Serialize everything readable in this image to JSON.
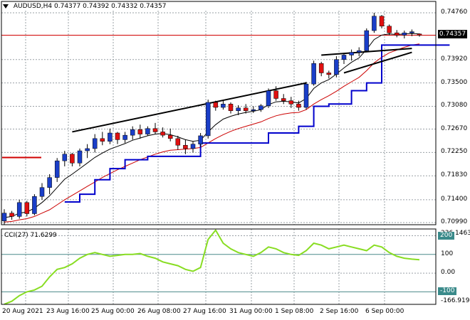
{
  "header": {
    "symbol": "AUDUSD,H4",
    "ohlc": "0.74377 0.74392 0.74332 0.74357"
  },
  "cci": {
    "title": "CCI(27) 71.6299",
    "max_label": "236.1463",
    "min_label": "-166.9194",
    "levels": [
      "200",
      "100",
      "0.00",
      "-100"
    ]
  },
  "price_axis": {
    "labels": [
      "0.74760",
      "0.74357",
      "0.73920",
      "0.73500",
      "0.73080",
      "0.72670",
      "0.72250",
      "0.71830",
      "0.71400",
      "0.70990"
    ],
    "current": "0.74357"
  },
  "time_axis": {
    "labels": [
      "20 Aug 2021",
      "23 Aug 16:00",
      "25 Aug 00:00",
      "26 Aug 08:00",
      "27 Aug 16:00",
      "31 Aug 00:00",
      "1 Sep 08:00",
      "2 Sep 16:00",
      "6 Sep 00:00"
    ]
  },
  "colors": {
    "bull": "#1a3ec8",
    "bear": "#e01010",
    "ma_fast": "#000000",
    "ma_slow": "#cc0000",
    "support": "#0000cc",
    "cci": "#88dd22",
    "grid": "#9aa0a6",
    "pane_border": "#000000",
    "current_line": "#d00000"
  },
  "chart_data": {
    "type": "candlestick",
    "series": [
      {
        "name": "",
        "ohlc": [
          [
            0.7102,
            0.7123,
            0.7095,
            0.7116
          ],
          [
            0.7116,
            0.712,
            0.7104,
            0.711
          ],
          [
            0.711,
            0.714,
            0.7106,
            0.7135
          ],
          [
            0.7135,
            0.7138,
            0.711,
            0.7115
          ],
          [
            0.7115,
            0.715,
            0.7112,
            0.7146
          ],
          [
            0.7146,
            0.717,
            0.714,
            0.7162
          ],
          [
            0.7162,
            0.7186,
            0.715,
            0.718
          ],
          [
            0.718,
            0.7215,
            0.7172,
            0.721
          ],
          [
            0.721,
            0.7228,
            0.72,
            0.7222
          ],
          [
            0.7222,
            0.7224,
            0.72,
            0.7206
          ],
          [
            0.7206,
            0.7232,
            0.72,
            0.7228
          ],
          [
            0.7228,
            0.724,
            0.7215,
            0.7232
          ],
          [
            0.7232,
            0.7258,
            0.7225,
            0.725
          ],
          [
            0.725,
            0.7262,
            0.7238,
            0.7245
          ],
          [
            0.7245,
            0.7268,
            0.724,
            0.726
          ],
          [
            0.726,
            0.7262,
            0.724,
            0.7248
          ],
          [
            0.7248,
            0.7262,
            0.7242,
            0.7256
          ],
          [
            0.7256,
            0.7272,
            0.7248,
            0.7266
          ],
          [
            0.7266,
            0.7275,
            0.725,
            0.7258
          ],
          [
            0.7258,
            0.7272,
            0.7255,
            0.7268
          ],
          [
            0.7268,
            0.7278,
            0.7258,
            0.7262
          ],
          [
            0.7262,
            0.727,
            0.7252,
            0.7256
          ],
          [
            0.7256,
            0.7268,
            0.7245,
            0.725
          ],
          [
            0.725,
            0.7255,
            0.723,
            0.7238
          ],
          [
            0.7238,
            0.7248,
            0.7222,
            0.7232
          ],
          [
            0.7232,
            0.7245,
            0.7225,
            0.724
          ],
          [
            0.724,
            0.726,
            0.7235,
            0.7255
          ],
          [
            0.7255,
            0.732,
            0.725,
            0.7315
          ],
          [
            0.7315,
            0.7318,
            0.73,
            0.7306
          ],
          [
            0.7306,
            0.7318,
            0.7302,
            0.7312
          ],
          [
            0.7312,
            0.7315,
            0.7295,
            0.73
          ],
          [
            0.73,
            0.731,
            0.7292,
            0.7305
          ],
          [
            0.7305,
            0.7312,
            0.7295,
            0.73
          ],
          [
            0.73,
            0.7308,
            0.7296,
            0.7302
          ],
          [
            0.7302,
            0.7312,
            0.7298,
            0.7309
          ],
          [
            0.7309,
            0.734,
            0.7305,
            0.7336
          ],
          [
            0.7336,
            0.7344,
            0.7318,
            0.7322
          ],
          [
            0.7322,
            0.733,
            0.7312,
            0.7318
          ],
          [
            0.7318,
            0.7325,
            0.7305,
            0.7312
          ],
          [
            0.7312,
            0.7318,
            0.73,
            0.7306
          ],
          [
            0.7306,
            0.7352,
            0.7302,
            0.7348
          ],
          [
            0.7348,
            0.739,
            0.7345,
            0.7385
          ],
          [
            0.7385,
            0.7388,
            0.7362,
            0.7368
          ],
          [
            0.7368,
            0.7372,
            0.7358,
            0.7365
          ],
          [
            0.7365,
            0.7398,
            0.736,
            0.7392
          ],
          [
            0.7392,
            0.7404,
            0.7384,
            0.74
          ],
          [
            0.74,
            0.741,
            0.739,
            0.7405
          ],
          [
            0.7405,
            0.7414,
            0.7398,
            0.7408
          ],
          [
            0.7408,
            0.7448,
            0.7405,
            0.7444
          ],
          [
            0.7444,
            0.7476,
            0.744,
            0.747
          ],
          [
            0.747,
            0.7472,
            0.7448,
            0.7452
          ],
          [
            0.7452,
            0.7455,
            0.7436,
            0.744
          ],
          [
            0.744,
            0.7445,
            0.7432,
            0.7436
          ],
          [
            0.7436,
            0.7444,
            0.743,
            0.744
          ],
          [
            0.744,
            0.7446,
            0.7434,
            0.7442
          ],
          [
            0.7438,
            0.7439,
            0.7433,
            0.7436
          ]
        ]
      },
      {
        "name": "",
        "kind": "ma_fast",
        "values": [
          0.7108,
          0.711,
          0.7116,
          0.7118,
          0.7125,
          0.7135,
          0.7147,
          0.7162,
          0.7177,
          0.7186,
          0.7196,
          0.7206,
          0.7216,
          0.7224,
          0.7231,
          0.7236,
          0.7241,
          0.7247,
          0.7251,
          0.7255,
          0.7258,
          0.7259,
          0.7257,
          0.7253,
          0.7248,
          0.7245,
          0.7247,
          0.7262,
          0.7275,
          0.7285,
          0.729,
          0.7294,
          0.7297,
          0.7299,
          0.7302,
          0.7311,
          0.7316,
          0.7317,
          0.7316,
          0.7314,
          0.7322,
          0.734,
          0.735,
          0.7356,
          0.7366,
          0.7377,
          0.7387,
          0.7395,
          0.741,
          0.7428,
          0.7436,
          0.7438,
          0.7437,
          0.7438,
          0.7439,
          0.7438
        ]
      },
      {
        "name": "",
        "kind": "ma_slow",
        "values": [
          0.71,
          0.7101,
          0.7104,
          0.7106,
          0.711,
          0.7116,
          0.7122,
          0.7131,
          0.714,
          0.7148,
          0.7156,
          0.7164,
          0.7172,
          0.718,
          0.7187,
          0.7194,
          0.72,
          0.7206,
          0.7212,
          0.7217,
          0.7222,
          0.7226,
          0.7229,
          0.723,
          0.7231,
          0.7232,
          0.7234,
          0.7242,
          0.725,
          0.7257,
          0.7263,
          0.7268,
          0.7272,
          0.7276,
          0.728,
          0.7286,
          0.7291,
          0.7294,
          0.7296,
          0.7297,
          0.7302,
          0.7312,
          0.732,
          0.7327,
          0.7335,
          0.7344,
          0.7352,
          0.736,
          0.7372,
          0.7386,
          0.7396,
          0.7404,
          0.7409,
          0.7414,
          0.7418,
          0.742
        ]
      },
      {
        "name": "",
        "kind": "support",
        "points": [
          [
            8,
            0.7136
          ],
          [
            10,
            0.7136
          ],
          [
            10,
            0.715
          ],
          [
            12,
            0.715
          ],
          [
            12,
            0.7176
          ],
          [
            14,
            0.7176
          ],
          [
            14,
            0.7196
          ],
          [
            16,
            0.7196
          ],
          [
            16,
            0.7212
          ],
          [
            19,
            0.7212
          ],
          [
            19,
            0.7218
          ],
          [
            26,
            0.7218
          ],
          [
            26,
            0.7242
          ],
          [
            35,
            0.7242
          ],
          [
            35,
            0.726
          ],
          [
            39,
            0.726
          ],
          [
            39,
            0.7272
          ],
          [
            41,
            0.7272
          ],
          [
            41,
            0.7308
          ],
          [
            43,
            0.7308
          ],
          [
            43,
            0.7312
          ],
          [
            46,
            0.7312
          ],
          [
            46,
            0.7336
          ],
          [
            48,
            0.7336
          ],
          [
            48,
            0.735
          ],
          [
            50,
            0.735
          ],
          [
            50,
            0.7418
          ],
          [
            59,
            0.7418
          ]
        ]
      },
      {
        "name": "",
        "kind": "cci",
        "values": [
          -166,
          -150,
          -120,
          -100,
          -90,
          -70,
          -20,
          20,
          30,
          50,
          80,
          100,
          110,
          100,
          90,
          95,
          100,
          100,
          105,
          90,
          80,
          60,
          50,
          40,
          20,
          10,
          30,
          180,
          230,
          160,
          130,
          110,
          100,
          90,
          110,
          140,
          130,
          110,
          100,
          95,
          120,
          160,
          150,
          130,
          140,
          150,
          140,
          130,
          120,
          150,
          140,
          110,
          90,
          80,
          75,
          72
        ]
      }
    ],
    "trendlines": [
      [
        [
          9,
          0.7262
        ],
        [
          40,
          0.735
        ]
      ],
      [
        [
          42,
          0.74
        ],
        [
          54,
          0.7412
        ]
      ],
      [
        [
          45,
          0.7368
        ],
        [
          54,
          0.7405
        ]
      ]
    ],
    "ylim": [
      0.7099,
      0.7476
    ],
    "cci_ylim": [
      -166.9194,
      236.1463
    ]
  }
}
